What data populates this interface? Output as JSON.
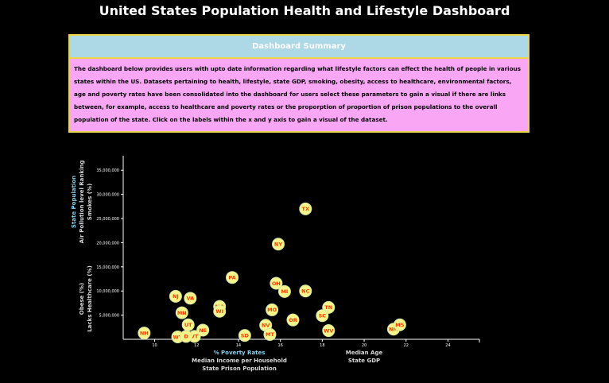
{
  "page": {
    "title": "United States Population Health and Lifestyle Dashboard"
  },
  "summary": {
    "heading": "Dashboard Summary",
    "text": "The dashboard below provides users with upto date information regarding what lifestyle factors can effect the health of people in various states within the US. Datasets pertaining to health, lifestyle, state GDP, smoking, obesity, access to healthcare, environmental factors, age and poverty rates have been consolidated into the dashboard for users select these parameters to gain a visual if there are links between, for example, access to healthcare and poverty rates or the proporption of proportion of prison populations to the overall population of the state. Click on the labels within the x and y axis to gain a visual of the dataset."
  },
  "colors": {
    "point_fill": "#f5f58a",
    "point_stroke": "#d4e6a0",
    "point_text": "#ff3b00",
    "active_label": "#87ceeb",
    "inactive_label": "#d8d8d8"
  },
  "chart_data": {
    "type": "scatter",
    "xlim": [
      8.5,
      25.5
    ],
    "ylim": [
      0,
      38000000
    ],
    "x_ticks": [
      10,
      12,
      14,
      16,
      18,
      20,
      22,
      24
    ],
    "y_ticks": [
      5000000,
      10000000,
      15000000,
      20000000,
      25000000,
      30000000,
      35000000
    ],
    "y_tick_labels": [
      "5,000,000",
      "10,000,000",
      "15,000,000",
      "20,000,000",
      "25,000,000",
      "30,000,000",
      "35,000,000"
    ],
    "x_axis_labels": [
      {
        "text": "% Poverty Rates",
        "active": true
      },
      {
        "text": "Median Income per Household",
        "active": false
      },
      {
        "text": "State Prison Population",
        "active": false
      },
      {
        "text": "Median Age",
        "active": false
      },
      {
        "text": "State GDP",
        "active": false
      }
    ],
    "y_axis_labels": [
      {
        "text": "State Population",
        "active": true
      },
      {
        "text": "Air Pollution level Ranking",
        "active": false
      },
      {
        "text": "Smokes (%)",
        "active": false
      },
      {
        "text": "Obese (%)",
        "active": false
      },
      {
        "text": "Lacks Healthcare (%)",
        "active": false
      }
    ],
    "points": [
      {
        "abbr": "NH",
        "x": 9.5,
        "y": 1300000
      },
      {
        "abbr": "NJ",
        "x": 11.0,
        "y": 8900000
      },
      {
        "abbr": "VA",
        "x": 11.7,
        "y": 8500000
      },
      {
        "abbr": "MN",
        "x": 11.3,
        "y": 5500000
      },
      {
        "abbr": "UT",
        "x": 11.6,
        "y": 3000000
      },
      {
        "abbr": "VT",
        "x": 11.9,
        "y": 600000
      },
      {
        "abbr": "WY",
        "x": 11.1,
        "y": 500000
      },
      {
        "abbr": "D",
        "x": 11.5,
        "y": 600000
      },
      {
        "abbr": "NE",
        "x": 12.3,
        "y": 1900000
      },
      {
        "abbr": "MA",
        "x": 13.1,
        "y": 6800000
      },
      {
        "abbr": "WI",
        "x": 13.1,
        "y": 5800000
      },
      {
        "abbr": "PA",
        "x": 13.7,
        "y": 12800000
      },
      {
        "abbr": "SD",
        "x": 14.3,
        "y": 800000
      },
      {
        "abbr": "OH",
        "x": 15.8,
        "y": 11600000
      },
      {
        "abbr": "NY",
        "x": 15.9,
        "y": 19700000
      },
      {
        "abbr": "MI",
        "x": 16.2,
        "y": 9900000
      },
      {
        "abbr": "MO",
        "x": 15.6,
        "y": 6100000
      },
      {
        "abbr": "NV",
        "x": 15.3,
        "y": 2900000
      },
      {
        "abbr": "MT",
        "x": 15.5,
        "y": 1000000
      },
      {
        "abbr": "OR",
        "x": 16.6,
        "y": 4000000
      },
      {
        "abbr": "TX",
        "x": 17.2,
        "y": 27000000
      },
      {
        "abbr": "NC",
        "x": 17.2,
        "y": 10000000
      },
      {
        "abbr": "TN",
        "x": 18.3,
        "y": 6600000
      },
      {
        "abbr": "SC",
        "x": 18.0,
        "y": 4900000
      },
      {
        "abbr": "WV",
        "x": 18.3,
        "y": 1800000
      },
      {
        "abbr": "NM",
        "x": 21.4,
        "y": 2100000
      },
      {
        "abbr": "MS",
        "x": 21.7,
        "y": 3000000
      }
    ]
  }
}
